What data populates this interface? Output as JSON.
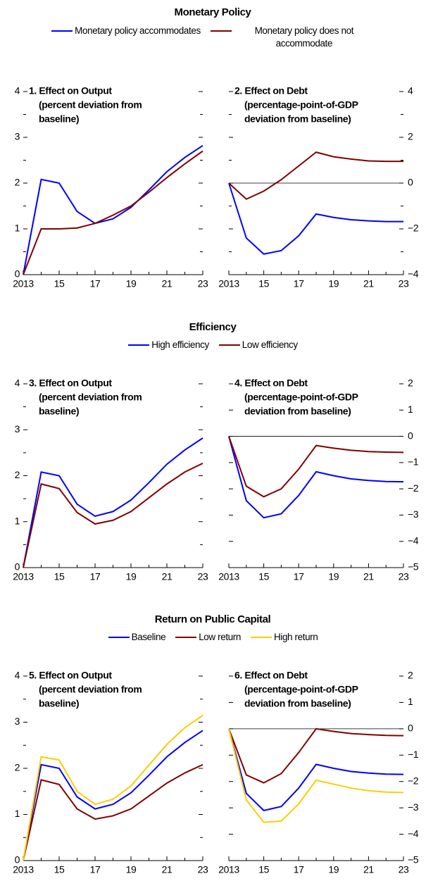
{
  "chart_data": [
    {
      "type": "line",
      "title": "Monetary Policy",
      "series": [
        {
          "name": "Monetary policy accommodates",
          "color": "#0000ff"
        },
        {
          "name": "Monetary policy does not accommodate",
          "color": "#800000"
        }
      ],
      "panels": [
        {
          "title": [
            "1. Effect on Output",
            "(percent deviation from",
            "baseline)"
          ],
          "yaxis": "left",
          "x": [
            2013,
            2014,
            2015,
            2016,
            2017,
            2018,
            2019,
            2020,
            2021,
            2022,
            2023
          ],
          "xlim": [
            2013,
            2023
          ],
          "xticks": [
            2013,
            {
              "value": 2015,
              "label": "15"
            },
            {
              "value": 2017,
              "label": "17"
            },
            {
              "value": 2019,
              "label": "19"
            },
            {
              "value": 2021,
              "label": "21"
            },
            {
              "value": 2023,
              "label": "23"
            }
          ],
          "xminorticks": [
            2014,
            2016,
            2018,
            2020,
            2022
          ],
          "ylim": [
            0,
            4
          ],
          "yticks": [
            0,
            1,
            2,
            3,
            4
          ],
          "yminorticks": [
            0.5,
            1.5,
            2.5,
            3.5
          ],
          "series": [
            {
              "values": [
                0,
                2.08,
                2.0,
                1.38,
                1.12,
                1.22,
                1.47,
                1.85,
                2.25,
                2.56,
                2.82
              ]
            },
            {
              "values": [
                0,
                1.0,
                1.0,
                1.02,
                1.12,
                1.3,
                1.5,
                1.8,
                2.12,
                2.42,
                2.7
              ]
            }
          ]
        },
        {
          "title": [
            "2. Effect on Debt",
            "(percentage-point-of-GDP",
            "deviation from baseline)"
          ],
          "yaxis": "right",
          "x": [
            2013,
            2014,
            2015,
            2016,
            2017,
            2018,
            2019,
            2020,
            2021,
            2022,
            2023
          ],
          "xlim": [
            2013,
            2023
          ],
          "xticks": [
            2013,
            {
              "value": 2015,
              "label": "15"
            },
            {
              "value": 2017,
              "label": "17"
            },
            {
              "value": 2019,
              "label": "19"
            },
            {
              "value": 2021,
              "label": "21"
            },
            {
              "value": 2023,
              "label": "23"
            }
          ],
          "xminorticks": [
            2014,
            2016,
            2018,
            2020,
            2022
          ],
          "ylim": [
            -4,
            4
          ],
          "yticks": [
            {
              "value": -4,
              "label": "−4"
            },
            {
              "value": -2,
              "label": "−2"
            },
            0,
            2,
            4
          ],
          "yminorticks": [
            -3,
            -1,
            1,
            3
          ],
          "zero_line": 0,
          "series": [
            {
              "values": [
                0,
                -2.4,
                -3.1,
                -2.95,
                -2.3,
                -1.35,
                -1.5,
                -1.6,
                -1.65,
                -1.68,
                -1.68
              ]
            },
            {
              "values": [
                0,
                -0.7,
                -0.35,
                0.15,
                0.75,
                1.35,
                1.15,
                1.05,
                0.97,
                0.95,
                0.95
              ]
            }
          ]
        }
      ]
    },
    {
      "type": "line",
      "title": "Efficiency",
      "series": [
        {
          "name": "High efficiency",
          "color": "#0000ff"
        },
        {
          "name": "Low efficiency",
          "color": "#800000"
        }
      ],
      "panels": [
        {
          "title": [
            "3. Effect on Output",
            "(percent deviation from",
            "baseline)"
          ],
          "yaxis": "left",
          "x": [
            2013,
            2014,
            2015,
            2016,
            2017,
            2018,
            2019,
            2020,
            2021,
            2022,
            2023
          ],
          "xlim": [
            2013,
            2023
          ],
          "xticks": [
            2013,
            {
              "value": 2015,
              "label": "15"
            },
            {
              "value": 2017,
              "label": "17"
            },
            {
              "value": 2019,
              "label": "19"
            },
            {
              "value": 2021,
              "label": "21"
            },
            {
              "value": 2023,
              "label": "23"
            }
          ],
          "xminorticks": [
            2014,
            2016,
            2018,
            2020,
            2022
          ],
          "ylim": [
            0,
            4
          ],
          "yticks": [
            0,
            1,
            2,
            3,
            4
          ],
          "yminorticks": [
            0.5,
            1.5,
            2.5,
            3.5
          ],
          "series": [
            {
              "values": [
                0,
                2.08,
                2.0,
                1.38,
                1.12,
                1.22,
                1.47,
                1.85,
                2.25,
                2.56,
                2.82
              ]
            },
            {
              "values": [
                0,
                1.82,
                1.72,
                1.2,
                0.95,
                1.03,
                1.22,
                1.52,
                1.82,
                2.08,
                2.27
              ]
            }
          ]
        },
        {
          "title": [
            "4. Effect on Debt",
            "(percentage-point-of-GDP",
            "deviation from baseline)"
          ],
          "yaxis": "right",
          "x": [
            2013,
            2014,
            2015,
            2016,
            2017,
            2018,
            2019,
            2020,
            2021,
            2022,
            2023
          ],
          "xlim": [
            2013,
            2023
          ],
          "xticks": [
            2013,
            {
              "value": 2015,
              "label": "15"
            },
            {
              "value": 2017,
              "label": "17"
            },
            {
              "value": 2019,
              "label": "19"
            },
            {
              "value": 2021,
              "label": "21"
            },
            {
              "value": 2023,
              "label": "23"
            }
          ],
          "xminorticks": [
            2014,
            2016,
            2018,
            2020,
            2022
          ],
          "ylim": [
            -5,
            2
          ],
          "yticks": [
            {
              "value": -5,
              "label": "−5"
            },
            {
              "value": -4,
              "label": "−4"
            },
            {
              "value": -3,
              "label": "−3"
            },
            {
              "value": -2,
              "label": "−2"
            },
            {
              "value": -1,
              "label": "−1"
            },
            0,
            1,
            2
          ],
          "yminorticks": [],
          "zero_line": 0,
          "series": [
            {
              "values": [
                0,
                -2.45,
                -3.1,
                -2.95,
                -2.25,
                -1.35,
                -1.5,
                -1.62,
                -1.68,
                -1.72,
                -1.73
              ]
            },
            {
              "values": [
                0,
                -1.9,
                -2.3,
                -2.0,
                -1.25,
                -0.35,
                -0.45,
                -0.53,
                -0.58,
                -0.6,
                -0.61
              ]
            }
          ]
        }
      ]
    },
    {
      "type": "line",
      "title": "Return on Public Capital",
      "series": [
        {
          "name": "Baseline",
          "color": "#0000ff"
        },
        {
          "name": "Low return",
          "color": "#800000"
        },
        {
          "name": "High return",
          "color": "#ffcc00"
        }
      ],
      "panels": [
        {
          "title": [
            "5. Effect on Output",
            "(percent deviation from",
            "baseline)"
          ],
          "yaxis": "left",
          "x": [
            2013,
            2014,
            2015,
            2016,
            2017,
            2018,
            2019,
            2020,
            2021,
            2022,
            2023
          ],
          "xlim": [
            2013,
            2023
          ],
          "xticks": [
            2013,
            {
              "value": 2015,
              "label": "15"
            },
            {
              "value": 2017,
              "label": "17"
            },
            {
              "value": 2019,
              "label": "19"
            },
            {
              "value": 2021,
              "label": "21"
            },
            {
              "value": 2023,
              "label": "23"
            }
          ],
          "xminorticks": [
            2014,
            2016,
            2018,
            2020,
            2022
          ],
          "ylim": [
            0,
            4
          ],
          "yticks": [
            0,
            1,
            2,
            3,
            4
          ],
          "yminorticks": [
            0.5,
            1.5,
            2.5,
            3.5
          ],
          "series": [
            {
              "values": [
                0,
                2.08,
                2.0,
                1.38,
                1.12,
                1.22,
                1.47,
                1.85,
                2.25,
                2.56,
                2.82
              ]
            },
            {
              "values": [
                0,
                1.75,
                1.65,
                1.12,
                0.9,
                0.97,
                1.12,
                1.4,
                1.68,
                1.9,
                2.08
              ]
            },
            {
              "values": [
                0,
                2.25,
                2.18,
                1.5,
                1.22,
                1.33,
                1.62,
                2.07,
                2.52,
                2.88,
                3.15
              ]
            }
          ]
        },
        {
          "title": [
            "6. Effect on Debt",
            "(percentage-point-of-GDP",
            "deviation from baseline)"
          ],
          "yaxis": "right",
          "x": [
            2013,
            2014,
            2015,
            2016,
            2017,
            2018,
            2019,
            2020,
            2021,
            2022,
            2023
          ],
          "xlim": [
            2013,
            2023
          ],
          "xticks": [
            2013,
            {
              "value": 2015,
              "label": "15"
            },
            {
              "value": 2017,
              "label": "17"
            },
            {
              "value": 2019,
              "label": "19"
            },
            {
              "value": 2021,
              "label": "21"
            },
            {
              "value": 2023,
              "label": "23"
            }
          ],
          "xminorticks": [
            2014,
            2016,
            2018,
            2020,
            2022
          ],
          "ylim": [
            -5,
            2
          ],
          "yticks": [
            {
              "value": -5,
              "label": "−5"
            },
            {
              "value": -4,
              "label": "−4"
            },
            {
              "value": -3,
              "label": "−3"
            },
            {
              "value": -2,
              "label": "−2"
            },
            {
              "value": -1,
              "label": "−1"
            },
            0,
            1,
            2
          ],
          "yminorticks": [],
          "zero_line": 0,
          "series": [
            {
              "values": [
                0,
                -2.45,
                -3.1,
                -2.95,
                -2.25,
                -1.35,
                -1.5,
                -1.62,
                -1.68,
                -1.72,
                -1.73
              ]
            },
            {
              "values": [
                0,
                -1.75,
                -2.05,
                -1.7,
                -0.9,
                0.0,
                -0.1,
                -0.18,
                -0.22,
                -0.25,
                -0.26
              ]
            },
            {
              "values": [
                0,
                -2.7,
                -3.55,
                -3.5,
                -2.85,
                -1.95,
                -2.1,
                -2.25,
                -2.35,
                -2.4,
                -2.42
              ]
            }
          ]
        }
      ]
    }
  ]
}
